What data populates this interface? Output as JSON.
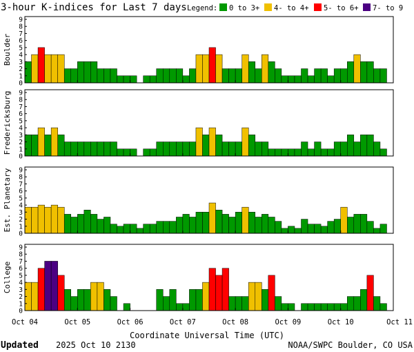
{
  "title": "3-hour K-indices for Last 7 days",
  "legend": {
    "label": "Legend:",
    "items": [
      {
        "label": "0 to 3+",
        "color": "#009900"
      },
      {
        "label": "4- to 4+",
        "color": "#f0c000"
      },
      {
        "label": "5- to 6+",
        "color": "#ff0000"
      },
      {
        "label": "7- to 9",
        "color": "#4b0082"
      }
    ]
  },
  "footer": {
    "updated_label": "Updated",
    "updated_value": "2025 Oct 10 2130",
    "credit": "NOAA/SWPC Boulder, CO USA"
  },
  "chart_data": {
    "type": "bar",
    "xlabel": "Coordinate Universal Time (UTC)",
    "x_ticks": [
      "Oct 04",
      "Oct 05",
      "Oct 06",
      "Oct 07",
      "Oct 08",
      "Oct 09",
      "Oct 10",
      "Oct 11"
    ],
    "y_ticks": [
      "0",
      "1",
      "2",
      "3",
      "4",
      "5",
      "6",
      "7",
      "8",
      "9"
    ],
    "ylim": [
      0,
      9
    ],
    "bins_per_day": 8,
    "panels": [
      {
        "name": "Boulder",
        "values": [
          3,
          4,
          5,
          4,
          4,
          4,
          2,
          2,
          3,
          3,
          3,
          2,
          2,
          2,
          1,
          1,
          1,
          0,
          1,
          1,
          2,
          2,
          2,
          2,
          1,
          2,
          4,
          4,
          5,
          4,
          2,
          2,
          2,
          4,
          3,
          2,
          4,
          3,
          2,
          1,
          1,
          1,
          2,
          1,
          2,
          2,
          1,
          2,
          2,
          3,
          4,
          3,
          3,
          2,
          2,
          0
        ]
      },
      {
        "name": "Fredericksburg",
        "values": [
          3,
          3,
          4,
          3,
          4,
          3,
          2,
          2,
          2,
          2,
          2,
          2,
          2,
          2,
          1,
          1,
          1,
          0,
          1,
          1,
          2,
          2,
          2,
          2,
          2,
          2,
          4,
          3,
          4,
          3,
          2,
          2,
          2,
          4,
          3,
          2,
          2,
          1,
          1,
          1,
          1,
          1,
          2,
          1,
          2,
          1,
          1,
          2,
          2,
          3,
          2,
          3,
          3,
          2,
          1,
          0
        ]
      },
      {
        "name": "Est. Planetary",
        "values": [
          3.7,
          3.7,
          4,
          3.7,
          4,
          3.7,
          2.7,
          2.3,
          2.7,
          3.3,
          2.7,
          2,
          2.3,
          1.3,
          1,
          1.3,
          1.3,
          0.7,
          1.3,
          1.3,
          1.7,
          1.7,
          1.7,
          2.3,
          2.7,
          2.3,
          3,
          3,
          4.3,
          3.3,
          2.7,
          2.3,
          3,
          3.7,
          3,
          2.3,
          2.7,
          2.3,
          1.7,
          0.7,
          1,
          0.7,
          2,
          1.3,
          1.3,
          1,
          1.7,
          2,
          3.7,
          2.3,
          2.7,
          2.7,
          1.7,
          0.7,
          1.3,
          0
        ]
      },
      {
        "name": "College",
        "values": [
          4,
          4,
          6,
          7,
          7,
          5,
          3,
          2,
          3,
          3,
          4,
          4,
          3,
          2,
          0,
          1,
          0,
          0,
          0,
          0,
          3,
          2,
          3,
          1,
          1,
          3,
          3,
          4,
          6,
          5,
          6,
          2,
          2,
          2,
          4,
          4,
          3,
          5,
          2,
          1,
          1,
          0,
          1,
          1,
          1,
          1,
          1,
          1,
          1,
          2,
          2,
          3,
          5,
          2,
          1,
          0
        ]
      }
    ]
  }
}
